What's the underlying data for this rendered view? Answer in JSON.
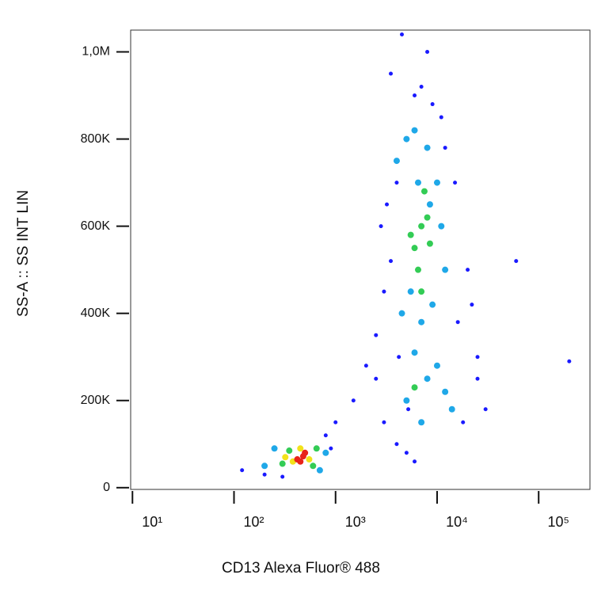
{
  "chart_data": {
    "type": "scatter",
    "x_label": "CD13 Alexa Fluor® 488",
    "y_label": "SS-A :: SS INT LIN",
    "xscale": "log",
    "xlim": [
      9.6,
      320000
    ],
    "ylim": [
      -4000,
      1050000
    ],
    "xticks": [
      {
        "value": 10,
        "label": "10¹"
      },
      {
        "value": 100,
        "label": "10²"
      },
      {
        "value": 1000,
        "label": "10³"
      },
      {
        "value": 10000,
        "label": "10⁴"
      },
      {
        "value": 100000,
        "label": "10⁵"
      }
    ],
    "yticks": [
      0,
      {
        "value": 200000,
        "label": "200K"
      },
      {
        "value": 400000,
        "label": "400K"
      },
      {
        "value": 600000,
        "label": "600K"
      },
      {
        "value": 800000,
        "label": "800K"
      },
      {
        "value": 1000000,
        "label": "1,0M"
      }
    ],
    "series": [
      {
        "color": "#1a1aff",
        "x": [
          120,
          200,
          300,
          800,
          1000,
          900,
          1500,
          2000,
          2500,
          3000,
          3500,
          2800,
          4000,
          5000,
          6000,
          8000,
          12000,
          15000,
          20000,
          25000,
          18000,
          3000,
          4000,
          5000,
          6000,
          4500,
          3500,
          25000,
          30000,
          60000,
          200000,
          11000,
          9000,
          7000,
          2500,
          3200,
          16000,
          22000,
          4200,
          5200
        ],
        "values": [
          40000,
          30000,
          25000,
          120000,
          150000,
          90000,
          200000,
          280000,
          350000,
          450000,
          520000,
          600000,
          700000,
          800000,
          900000,
          1000000,
          780000,
          700000,
          500000,
          300000,
          150000,
          150000,
          100000,
          80000,
          60000,
          1040000,
          950000,
          250000,
          180000,
          520000,
          290000,
          850000,
          880000,
          920000,
          250000,
          650000,
          380000,
          420000,
          300000,
          180000
        ]
      },
      {
        "color": "#1fa8e8",
        "x": [
          200,
          250,
          700,
          800,
          4000,
          5000,
          6000,
          8000,
          10000,
          12000,
          4500,
          7000,
          9000,
          11000,
          5500,
          6500,
          8500,
          5000,
          7000,
          10000,
          12000,
          14000,
          6000,
          8000
        ],
        "values": [
          50000,
          90000,
          40000,
          80000,
          750000,
          800000,
          820000,
          780000,
          700000,
          500000,
          400000,
          380000,
          420000,
          600000,
          450000,
          700000,
          650000,
          200000,
          150000,
          280000,
          220000,
          180000,
          310000,
          250000
        ]
      },
      {
        "color": "#33cc55",
        "x": [
          300,
          350,
          600,
          650,
          6000,
          7000,
          8000,
          6500,
          7500,
          5500,
          8500,
          7000,
          6000
        ],
        "values": [
          55000,
          85000,
          50000,
          90000,
          550000,
          600000,
          620000,
          500000,
          680000,
          580000,
          560000,
          450000,
          230000
        ]
      },
      {
        "color": "#f2e21a",
        "x": [
          380,
          550,
          450,
          320
        ],
        "values": [
          60000,
          65000,
          90000,
          70000
        ]
      },
      {
        "color": "#e8231a",
        "x": [
          420,
          480,
          450,
          500
        ],
        "values": [
          65000,
          72000,
          60000,
          80000
        ]
      }
    ]
  }
}
